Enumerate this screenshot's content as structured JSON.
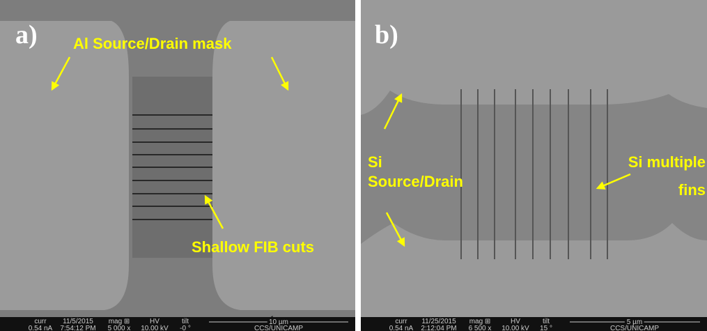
{
  "panels": [
    {
      "label": "a)",
      "annotations": [
        "Al Source/Drain mask",
        "Shallow FIB cuts"
      ],
      "info_bar": {
        "headers": [
          "curr",
          "11/5/2015",
          "mag ⊞",
          "HV",
          "tilt"
        ],
        "values": [
          "0.54 nA",
          "7:54:12 PM",
          "5 000 x",
          "10.00 kV",
          "-0 °"
        ],
        "scale": "10 µm",
        "credit": "CCS/UNICAMP"
      }
    },
    {
      "label": "b)",
      "annotations": [
        "Si",
        "Source/Drain",
        "Si multiple",
        "fins"
      ],
      "info_bar": {
        "headers": [
          "curr",
          "11/25/2015",
          "mag ⊞",
          "HV",
          "tilt"
        ],
        "values": [
          "0.54 nA",
          "2:12:04 PM",
          "6 500 x",
          "10.00 kV",
          "15 °"
        ],
        "scale": "5 µm",
        "credit": "CCS/UNICAMP"
      }
    }
  ]
}
